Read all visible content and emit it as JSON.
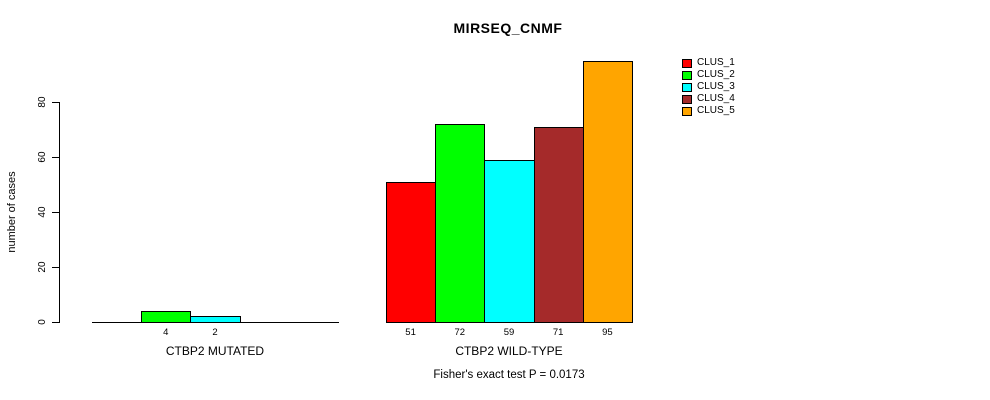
{
  "chart_data": {
    "type": "bar",
    "title": "MIRSEQ_CNMF",
    "ylabel": "number of cases",
    "ylim": [
      0,
      80
    ],
    "yticks": [
      0,
      20,
      40,
      60,
      80
    ],
    "grid": false,
    "legend_position": "right",
    "series": [
      {
        "name": "CLUS_1",
        "color": "#FF0000"
      },
      {
        "name": "CLUS_2",
        "color": "#00FF00"
      },
      {
        "name": "CLUS_3",
        "color": "#00FFFF"
      },
      {
        "name": "CLUS_4",
        "color": "#A52A2A"
      },
      {
        "name": "CLUS_5",
        "color": "#FFA500"
      }
    ],
    "groups": [
      {
        "label": "CTBP2 MUTATED",
        "values": [
          0,
          4,
          2,
          0,
          0
        ],
        "value_labels": [
          "",
          "4",
          "2",
          "",
          ""
        ]
      },
      {
        "label": "CTBP2 WILD-TYPE",
        "values": [
          51,
          72,
          59,
          71,
          95
        ],
        "value_labels": [
          "51",
          "72",
          "59",
          "71",
          "95"
        ]
      }
    ],
    "annotation": "Fisher's exact test P = 0.0173"
  }
}
